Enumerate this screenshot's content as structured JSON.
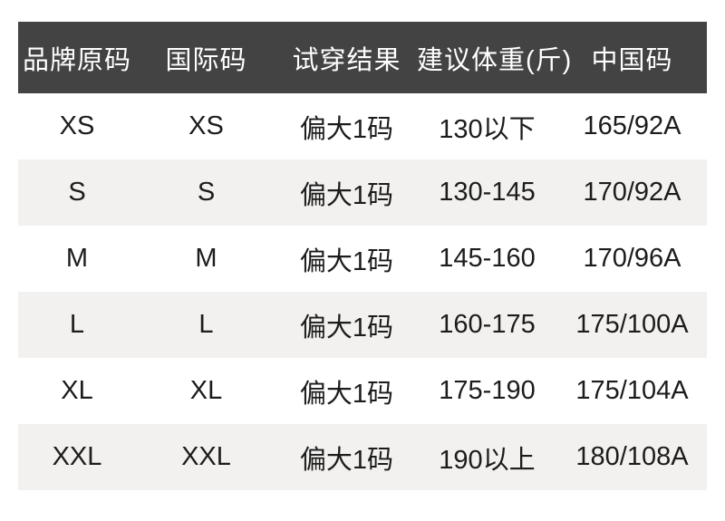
{
  "colors": {
    "page_bg": "#ffffff",
    "header_bg": "#434343",
    "header_text": "#ffffff",
    "row_bg": "#ffffff",
    "row_alt_bg": "#f2f1ef",
    "body_text": "#1c1c1c"
  },
  "table": {
    "headers": [
      "品牌原码",
      "国际码",
      "试穿结果",
      "建议体重(斤)",
      "中国码"
    ],
    "rows": [
      [
        "XS",
        "XS",
        "偏大1码",
        "130以下",
        "165/92A"
      ],
      [
        "S",
        "S",
        "偏大1码",
        "130-145",
        "170/92A"
      ],
      [
        "M",
        "M",
        "偏大1码",
        "145-160",
        "170/96A"
      ],
      [
        "L",
        "L",
        "偏大1码",
        "160-175",
        "175/100A"
      ],
      [
        "XL",
        "XL",
        "偏大1码",
        "175-190",
        "175/104A"
      ],
      [
        "XXL",
        "XXL",
        "偏大1码",
        "190以上",
        "180/108A"
      ]
    ]
  },
  "chart_data": {
    "type": "table",
    "title": "",
    "columns": [
      "品牌原码",
      "国际码",
      "试穿结果",
      "建议体重(斤)",
      "中国码"
    ],
    "rows": [
      [
        "XS",
        "XS",
        "偏大1码",
        "130以下",
        "165/92A"
      ],
      [
        "S",
        "S",
        "偏大1码",
        "130-145",
        "170/92A"
      ],
      [
        "M",
        "M",
        "偏大1码",
        "145-160",
        "170/96A"
      ],
      [
        "L",
        "L",
        "偏大1码",
        "160-175",
        "175/100A"
      ],
      [
        "XL",
        "XL",
        "偏大1码",
        "175-190",
        "175/104A"
      ],
      [
        "XXL",
        "XXL",
        "偏大1码",
        "190以上",
        "180/108A"
      ]
    ],
    "layout": {
      "zebra_striping": true,
      "first_data_row_bg": "white",
      "text_align": "center",
      "header_style": "dark-charcoal with white text"
    }
  }
}
